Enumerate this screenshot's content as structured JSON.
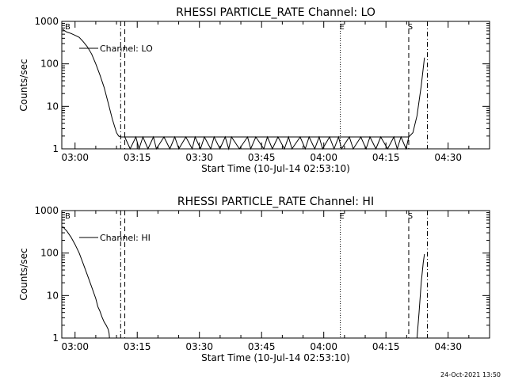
{
  "footer_timestamp": "24-Oct-2021 13:50",
  "chart_data": [
    {
      "type": "line",
      "title": "RHESSI PARTICLE_RATE Channel: LO",
      "xlabel": "Start Time (10-Jul-14 02:53:10)",
      "ylabel": "Counts/sec",
      "yscale": "log",
      "ylim": [
        1,
        1000
      ],
      "xlim_minutes": [
        -3.2,
        100
      ],
      "x_tick_labels": [
        "03:00",
        "03:15",
        "03:30",
        "03:45",
        "04:00",
        "04:15",
        "04:30"
      ],
      "x_tick_minutes": [
        0,
        15,
        30,
        45,
        60,
        75,
        90
      ],
      "y_tick_labels": [
        "1",
        "10",
        "100",
        "1000"
      ],
      "y_ticks": [
        1,
        10,
        100,
        1000
      ],
      "legend": {
        "label": "Channel: LO",
        "placement": "top-left"
      },
      "markers": [
        {
          "label": "E",
          "x_minute": 64,
          "style": "dotted"
        },
        {
          "label": "S",
          "x_minute": 80.5,
          "style": "dashed"
        },
        {
          "label": "",
          "x_minute": 11,
          "style": "dash-dot"
        },
        {
          "label": "",
          "x_minute": 12,
          "style": "dashed"
        },
        {
          "label": "",
          "x_minute": 85,
          "style": "dash-dot"
        }
      ],
      "corner_label": "B",
      "series": [
        {
          "x": [
            -3,
            -2,
            -1,
            0,
            1,
            2,
            3,
            4,
            5,
            6,
            7,
            8,
            9,
            10,
            10.5,
            11,
            11.5,
            12,
            80.5,
            81.5,
            82.5,
            83.5,
            84.3
          ],
          "y": [
            650,
            560,
            520,
            470,
            420,
            330,
            250,
            170,
            100,
            55,
            28,
            12,
            5,
            2.4,
            2,
            1.9,
            1.9,
            1.9,
            1.9,
            2.4,
            6,
            30,
            140
          ]
        }
      ]
    },
    {
      "type": "line",
      "title": "RHESSI PARTICLE_RATE Channel: HI",
      "xlabel": "Start Time (10-Jul-14 02:53:10)",
      "ylabel": "Counts/sec",
      "yscale": "log",
      "ylim": [
        1,
        1000
      ],
      "xlim_minutes": [
        -3.2,
        100
      ],
      "x_tick_labels": [
        "03:00",
        "03:15",
        "03:30",
        "03:45",
        "04:00",
        "04:15",
        "04:30"
      ],
      "x_tick_minutes": [
        0,
        15,
        30,
        45,
        60,
        75,
        90
      ],
      "y_tick_labels": [
        "1",
        "10",
        "100",
        "1000"
      ],
      "y_ticks": [
        1,
        10,
        100,
        1000
      ],
      "legend": {
        "label": "Channel: HI",
        "placement": "top-left"
      },
      "markers": [
        {
          "label": "E",
          "x_minute": 64,
          "style": "dotted"
        },
        {
          "label": "S",
          "x_minute": 80.5,
          "style": "dashed"
        },
        {
          "label": "",
          "x_minute": 11,
          "style": "dash-dot"
        },
        {
          "label": "",
          "x_minute": 12,
          "style": "dashed"
        },
        {
          "label": "",
          "x_minute": 85,
          "style": "dash-dot"
        }
      ],
      "corner_label": "B",
      "series": [
        {
          "x": [
            -3,
            -2,
            -1,
            0,
            1,
            2,
            3,
            4,
            5,
            5.5,
            6,
            6.5,
            7,
            7.5,
            8,
            8.2,
            8.3,
            82.5,
            83.0,
            83.5,
            84.0,
            84.3
          ],
          "y": [
            420,
            330,
            240,
            160,
            100,
            55,
            30,
            16,
            8.5,
            5.5,
            4.3,
            3.1,
            2.4,
            2.0,
            1.6,
            1.3,
            1.0,
            1.0,
            4,
            20,
            60,
            95
          ]
        }
      ]
    }
  ]
}
